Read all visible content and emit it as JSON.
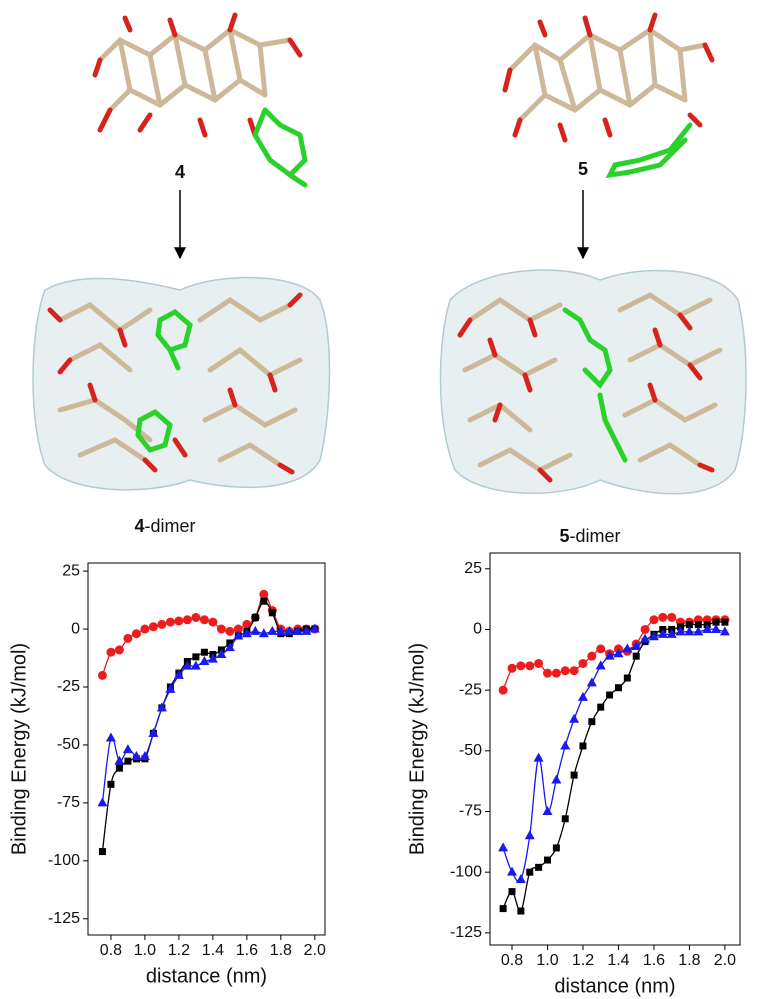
{
  "panels": [
    {
      "label": "4",
      "dimer_label": {
        "bold": "4",
        "text": "-dimer"
      }
    },
    {
      "label": "5",
      "dimer_label": {
        "bold": "5",
        "text": "-dimer"
      }
    }
  ],
  "chart_data": [
    {
      "type": "line",
      "xlabel": "distance (nm)",
      "ylabel": "Binding Energy (kJ/mol)",
      "xlim": [
        0.665,
        2.06
      ],
      "ylim": [
        -132,
        28.5
      ],
      "xticks": [
        0.8,
        {
          "value": 1,
          "label": "1.0"
        },
        1.2,
        1.4,
        1.6,
        1.8,
        {
          "value": 2,
          "label": "2.0"
        }
      ],
      "yticks": [
        -125,
        -100,
        -75,
        -50,
        -25,
        0,
        25
      ],
      "x": [
        0.75,
        0.8,
        0.85,
        0.9,
        0.95,
        1.0,
        1.05,
        1.1,
        1.15,
        1.2,
        1.25,
        1.3,
        1.35,
        1.4,
        1.45,
        1.5,
        1.55,
        1.6,
        1.65,
        1.7,
        1.75,
        1.8,
        1.85,
        1.9,
        1.95,
        2.0
      ],
      "series": [
        {
          "color": "#ee1c1c",
          "marker": "circle",
          "values": [
            -20,
            -10,
            -9,
            -4,
            -2,
            0,
            1,
            2,
            3,
            3.5,
            4,
            5,
            4,
            3,
            0,
            -1,
            0,
            2,
            5,
            15,
            8,
            0,
            -1,
            0,
            0,
            0
          ]
        },
        {
          "color": "#000000",
          "marker": "square",
          "values": [
            -96,
            -67,
            -60,
            -57,
            -56,
            -56,
            -45,
            -34,
            -25,
            -19,
            -14,
            -12,
            -10,
            -11,
            -9,
            -6,
            -3,
            -1,
            5,
            12,
            7,
            -2,
            -2,
            -1,
            0,
            0
          ]
        },
        {
          "color": "#1a1aee",
          "marker": "triangle",
          "values": [
            -75,
            -47,
            -57,
            -52,
            -55,
            -55,
            -45,
            -34,
            -26,
            -20,
            -16,
            -16,
            -14,
            -13,
            -11,
            -8,
            -3,
            -2,
            -1,
            -2,
            -1,
            -1,
            -1,
            -1,
            -1,
            0
          ]
        }
      ]
    },
    {
      "type": "line",
      "xlabel": "distance (nm)",
      "ylabel": "Binding Energy (kJ/mol)",
      "xlim": [
        0.676,
        2.085
      ],
      "ylim": [
        -130,
        31.5
      ],
      "xticks": [
        0.8,
        {
          "value": 1,
          "label": "1.0"
        },
        1.2,
        1.4,
        1.6,
        1.8,
        {
          "value": 2,
          "label": "2.0"
        }
      ],
      "yticks": [
        -125,
        -100,
        -75,
        -50,
        -25,
        0,
        25
      ],
      "x": [
        0.75,
        0.8,
        0.85,
        0.9,
        0.95,
        1.0,
        1.05,
        1.1,
        1.15,
        1.2,
        1.25,
        1.3,
        1.35,
        1.4,
        1.45,
        1.5,
        1.55,
        1.6,
        1.65,
        1.7,
        1.75,
        1.8,
        1.85,
        1.9,
        1.95,
        2.0
      ],
      "series": [
        {
          "color": "#ee1c1c",
          "marker": "circle",
          "values": [
            -25,
            -16,
            -15,
            -15,
            -14,
            -18,
            -18,
            -17,
            -17,
            -14,
            -11,
            -8,
            -10,
            -8,
            -9,
            -6,
            0,
            4,
            5,
            5,
            3,
            3,
            4,
            4,
            4,
            4
          ]
        },
        {
          "color": "#000000",
          "marker": "square",
          "values": [
            -115,
            -108,
            -116,
            -100,
            -98,
            -95,
            -90,
            -78,
            -60,
            -48,
            -38,
            -32,
            -27,
            -24,
            -20,
            -11,
            -5,
            -2,
            0,
            0,
            1,
            2,
            2,
            2,
            3,
            3
          ]
        },
        {
          "color": "#1a1aee",
          "marker": "triangle",
          "values": [
            -90,
            -100,
            -103,
            -85,
            -53,
            -75,
            -62,
            -48,
            -37,
            -28,
            -22,
            -15,
            -11,
            -10,
            -8,
            -7,
            -4,
            -3,
            -2,
            -2,
            -1,
            -1,
            -1,
            0,
            0,
            -1
          ]
        }
      ]
    }
  ]
}
